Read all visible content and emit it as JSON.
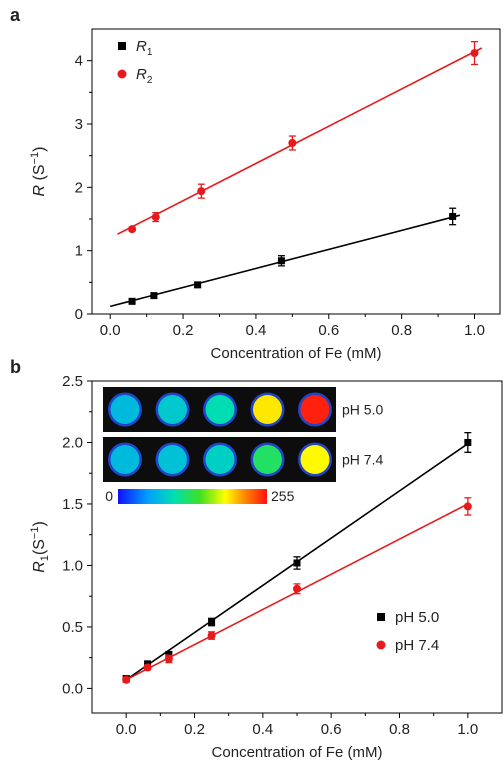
{
  "chart_data": [
    {
      "panel_label": "a",
      "type": "scatter",
      "xlabel": "Concentration of Fe (mM)",
      "ylabel_main": "R",
      "ylabel_unit": " (S",
      "ylabel_sup": "−1",
      "ylabel_close": ")",
      "xlim": [
        -0.05,
        1.07
      ],
      "ylim": [
        0,
        4.5
      ],
      "xticks": [
        0.0,
        0.2,
        0.4,
        0.6,
        0.8,
        1.0
      ],
      "xtick_labels": [
        "0.0",
        "0.2",
        "0.4",
        "0.6",
        "0.8",
        "1.0"
      ],
      "yticks": [
        0,
        1,
        2,
        3,
        4
      ],
      "ytick_labels": [
        "0",
        "1",
        "2",
        "3",
        "4"
      ],
      "legend_position": "top-left",
      "grid": false,
      "series": [
        {
          "name_main": "R",
          "name_sub": "1",
          "color": "#000000",
          "marker": "square",
          "x": [
            0.06,
            0.12,
            0.24,
            0.47,
            0.94
          ],
          "y": [
            0.2,
            0.29,
            0.46,
            0.84,
            1.54
          ],
          "err": [
            0.03,
            0.04,
            0.04,
            0.08,
            0.13
          ],
          "fit": {
            "x0": 0.0,
            "y0": 0.12,
            "x1": 0.96,
            "y1": 1.56
          }
        },
        {
          "name_main": "R",
          "name_sub": "2",
          "color": "#e8191a",
          "marker": "circle",
          "x": [
            0.06,
            0.125,
            0.25,
            0.5,
            1.0
          ],
          "y": [
            1.34,
            1.53,
            1.94,
            2.7,
            4.12
          ],
          "err": [
            0.03,
            0.07,
            0.11,
            0.11,
            0.18
          ],
          "fit": {
            "x0": 0.02,
            "y0": 1.26,
            "x1": 1.02,
            "y1": 4.2
          }
        }
      ]
    },
    {
      "panel_label": "b",
      "type": "scatter",
      "xlabel": "Concentration of Fe (mM)",
      "ylabel_main": "R",
      "ylabel_sub": "1",
      "ylabel_unit": "(S",
      "ylabel_sup": "−1",
      "ylabel_close": ")",
      "xlim": [
        -0.1,
        1.1
      ],
      "ylim": [
        -0.2,
        2.5
      ],
      "xticks": [
        0.0,
        0.2,
        0.4,
        0.6,
        0.8,
        1.0
      ],
      "xtick_labels": [
        "0.0",
        "0.2",
        "0.4",
        "0.6",
        "0.8",
        "1.0"
      ],
      "yticks": [
        0.0,
        0.5,
        1.0,
        1.5,
        2.0,
        2.5
      ],
      "ytick_labels": [
        "0.0",
        "0.5",
        "1.0",
        "1.5",
        "2.0",
        "2.5"
      ],
      "legend_position": "center-right",
      "grid": false,
      "series": [
        {
          "name": "pH 5.0",
          "color": "#000000",
          "marker": "square",
          "x": [
            0.0,
            0.0625,
            0.125,
            0.25,
            0.5,
            1.0
          ],
          "y": [
            0.08,
            0.2,
            0.27,
            0.54,
            1.02,
            2.0
          ],
          "err": [
            0.02,
            0.02,
            0.03,
            0.03,
            0.05,
            0.08
          ],
          "fit": {
            "x0": 0.0,
            "y0": 0.07,
            "x1": 1.0,
            "y1": 1.99
          }
        },
        {
          "name": "pH 7.4",
          "color": "#e8191a",
          "marker": "circle",
          "x": [
            0.0,
            0.0625,
            0.125,
            0.25,
            0.5,
            1.0
          ],
          "y": [
            0.07,
            0.17,
            0.24,
            0.43,
            0.81,
            1.48
          ],
          "err": [
            0.02,
            0.02,
            0.03,
            0.03,
            0.04,
            0.07
          ],
          "fit": {
            "x0": 0.0,
            "y0": 0.07,
            "x1": 1.0,
            "y1": 1.5
          }
        }
      ],
      "mri_inset": {
        "rows": [
          {
            "label": "pH 5.0",
            "intensities": [
              70,
              80,
              95,
              190,
              250
            ]
          },
          {
            "label": "pH 7.4",
            "intensities": [
              70,
              75,
              85,
              120,
              185
            ]
          }
        ],
        "colorbar_min": "0",
        "colorbar_max": "255"
      }
    }
  ]
}
